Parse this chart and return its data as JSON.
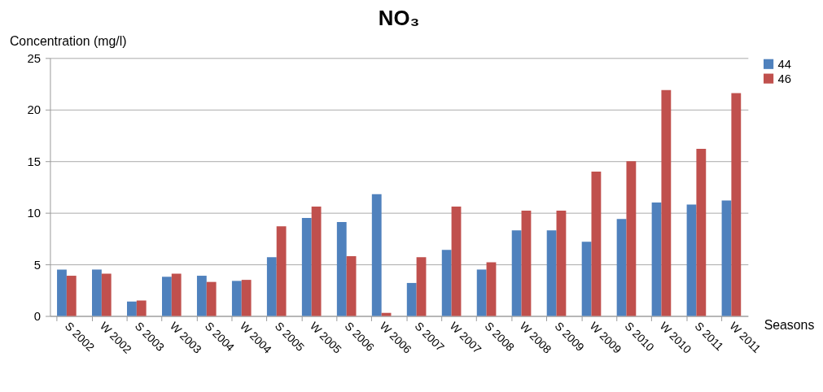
{
  "chart_data": {
    "type": "bar",
    "title": "NO₃",
    "ylabel": "Concentration (mg/l)",
    "xlabel": "Seasons",
    "categories": [
      "S 2002",
      "W 2002",
      "S 2003",
      "W 2003",
      "S 2004",
      "W 2004",
      "S 2005",
      "W 2005",
      "S 2006",
      "W 2006",
      "S 2007",
      "W 2007",
      "S 2008",
      "W 2008",
      "S 2009",
      "W 2009",
      "S 2010",
      "W 2010",
      "S 2011",
      "W 2011"
    ],
    "series": [
      {
        "name": "44",
        "color": "#4f81bd",
        "values": [
          4.5,
          4.5,
          1.4,
          3.8,
          3.9,
          3.4,
          5.7,
          9.5,
          9.1,
          11.8,
          3.2,
          6.4,
          4.5,
          8.3,
          8.3,
          7.2,
          9.4,
          11.0,
          10.8,
          11.2
        ]
      },
      {
        "name": "46",
        "color": "#c0504d",
        "values": [
          3.9,
          4.1,
          1.5,
          4.1,
          3.3,
          3.5,
          8.7,
          10.6,
          5.8,
          0.3,
          5.7,
          10.6,
          5.2,
          10.2,
          10.2,
          14.0,
          15.0,
          21.9,
          16.2,
          21.6
        ]
      }
    ],
    "ylim": [
      0,
      25
    ],
    "yticks": [
      0,
      5,
      10,
      15,
      20,
      25
    ],
    "grid": "y",
    "legend": "right"
  }
}
